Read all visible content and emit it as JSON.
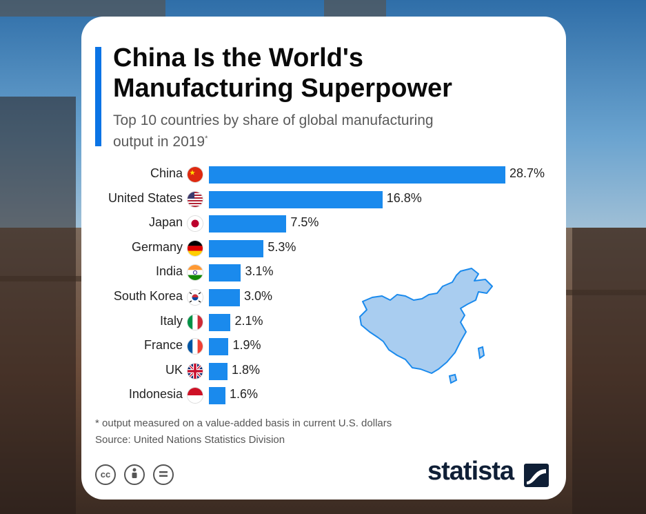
{
  "header": {
    "title_line1": "China Is the World's",
    "title_line2": "Manufacturing Superpower",
    "subtitle_line1": "Top 10 countries by share of global manufacturing",
    "subtitle_line2": "output in 2019",
    "subtitle_mark": "*"
  },
  "chart_data": {
    "type": "bar",
    "orientation": "horizontal",
    "categories": [
      "China",
      "United States",
      "Japan",
      "Germany",
      "India",
      "South Korea",
      "Italy",
      "France",
      "UK",
      "Indonesia"
    ],
    "values": [
      28.7,
      16.8,
      7.5,
      5.3,
      3.1,
      3.0,
      2.1,
      1.9,
      1.8,
      1.6
    ],
    "value_labels": [
      "28.7%",
      "16.8%",
      "7.5%",
      "5.3%",
      "3.1%",
      "3.0%",
      "2.1%",
      "1.9%",
      "1.8%",
      "1.6%"
    ],
    "bar_color": "#1a8aed",
    "grid": false,
    "legend": "none"
  },
  "flags": [
    "china-flag-icon",
    "united-states-flag-icon",
    "japan-flag-icon",
    "germany-flag-icon",
    "india-flag-icon",
    "south-korea-flag-icon",
    "italy-flag-icon",
    "france-flag-icon",
    "uk-flag-icon",
    "indonesia-flag-icon"
  ],
  "footer": {
    "footnote": "* output measured on a value-added basis in current U.S. dollars",
    "source": "Source: United Nations Statistics Division",
    "license_icons": [
      "cc-icon",
      "by-icon",
      "nd-icon"
    ],
    "brand": "statista"
  },
  "colors": {
    "accent": "#0b74e5",
    "bar": "#1a8aed",
    "map_fill": "#a9cdf0",
    "map_stroke": "#1a8aed",
    "brand": "#0f1f36"
  }
}
